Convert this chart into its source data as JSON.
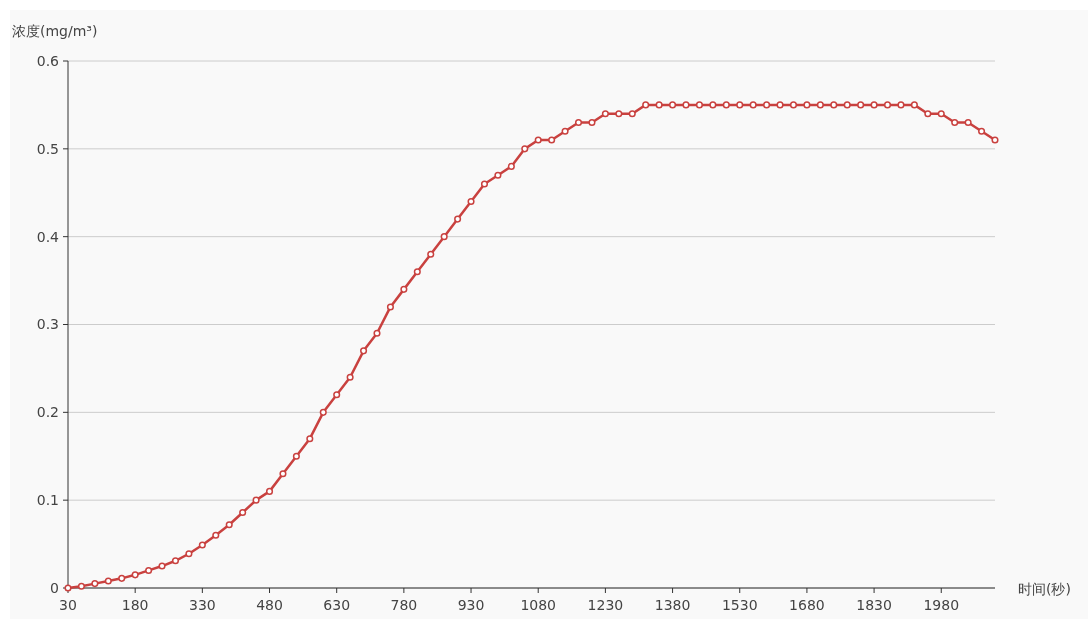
{
  "chart_data": {
    "type": "line",
    "xlabel": "时间(秒)",
    "ylabel": "浓度(mg/m³)",
    "x": [
      30,
      60,
      90,
      120,
      150,
      180,
      210,
      240,
      270,
      300,
      330,
      360,
      390,
      420,
      450,
      480,
      510,
      540,
      570,
      600,
      630,
      660,
      690,
      720,
      750,
      780,
      810,
      840,
      870,
      900,
      930,
      960,
      990,
      1020,
      1050,
      1080,
      1110,
      1140,
      1170,
      1200,
      1230,
      1260,
      1290,
      1320,
      1350,
      1380,
      1410,
      1440,
      1470,
      1500,
      1530,
      1560,
      1590,
      1620,
      1650,
      1680,
      1710,
      1740,
      1770,
      1800,
      1830,
      1860,
      1890,
      1920,
      1950,
      1980,
      2010,
      2040,
      2070,
      2100
    ],
    "series": [
      {
        "color": "#c9413f",
        "values": [
          0,
          0.002,
          0.005,
          0.008,
          0.011,
          0.015,
          0.02,
          0.025,
          0.031,
          0.039,
          0.049,
          0.06,
          0.072,
          0.086,
          0.1,
          0.11,
          0.13,
          0.15,
          0.17,
          0.2,
          0.22,
          0.24,
          0.27,
          0.29,
          0.32,
          0.34,
          0.36,
          0.38,
          0.4,
          0.42,
          0.44,
          0.46,
          0.47,
          0.48,
          0.5,
          0.51,
          0.51,
          0.52,
          0.53,
          0.53,
          0.54,
          0.54,
          0.54,
          0.55,
          0.55,
          0.55,
          0.55,
          0.55,
          0.55,
          0.55,
          0.55,
          0.55,
          0.55,
          0.55,
          0.55,
          0.55,
          0.55,
          0.55,
          0.55,
          0.55,
          0.55,
          0.55,
          0.55,
          0.55,
          0.54,
          0.54,
          0.53,
          0.53,
          0.52,
          0.51
        ]
      }
    ],
    "xlim": [
      30,
      2100
    ],
    "xticks": [
      30,
      180,
      330,
      480,
      630,
      780,
      930,
      1080,
      1230,
      1380,
      1530,
      1680,
      1830,
      1980
    ],
    "ylim": [
      0,
      0.6
    ],
    "yticks": [
      0,
      0.1,
      0.2,
      0.3,
      0.4,
      0.5,
      0.6
    ],
    "grid": "y",
    "marker": "circle",
    "line_style": "solid"
  }
}
